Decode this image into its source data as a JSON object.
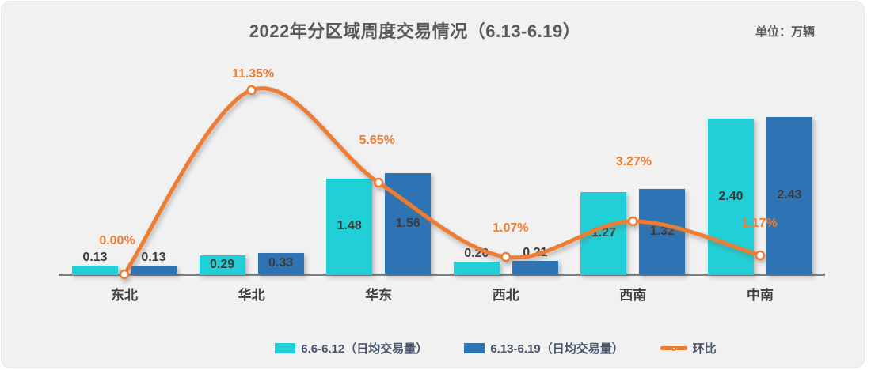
{
  "panel": {
    "title": "2022年分区域周度交易情况（6.13-6.19）",
    "unit_label": "单位：万辆"
  },
  "legend": {
    "position": "bottom",
    "items": [
      {
        "label": "6.6-6.12（日均交易量）",
        "marker": "bar-swatch",
        "color": "#21CFD6"
      },
      {
        "label": "6.13-6.19（日均交易量）",
        "marker": "bar-swatch",
        "color": "#2E74B5"
      },
      {
        "label": "环比",
        "marker": "line-dot",
        "color": "#ED7D31"
      }
    ]
  },
  "colors": {
    "bar_week1": "#21CFD6",
    "bar_week2": "#2E74B5",
    "ratio_line": "#ED7D31",
    "axis_line": "#7F7F7F",
    "value_label": "#3B3B3B",
    "category_label": "#3F3F3F",
    "pct_label": "#ED7D31",
    "title_text": "#595959",
    "legend_text": "#44546A",
    "panel_bg": "#F1F1F2"
  },
  "chart_data": {
    "type": "bar",
    "combo": "bar+line",
    "title": "2022年分区域周度交易情况（6.13-6.19）",
    "unit": "单位：万辆",
    "categories": [
      "东北",
      "华北",
      "华东",
      "西北",
      "西南",
      "中南"
    ],
    "series": [
      {
        "name": "6.6-6.12（日均交易量）",
        "type": "bar",
        "axis": "primary",
        "color": "#21CFD6",
        "values": [
          0.13,
          0.29,
          1.48,
          0.2,
          1.27,
          2.4
        ]
      },
      {
        "name": "6.13-6.19（日均交易量）",
        "type": "bar",
        "axis": "primary",
        "color": "#2E74B5",
        "values": [
          0.13,
          0.33,
          1.56,
          0.21,
          1.32,
          2.43
        ]
      },
      {
        "name": "环比",
        "type": "line",
        "axis": "secondary",
        "color": "#ED7D31",
        "smooth": true,
        "marker": "circle-white-fill",
        "values": [
          0.0,
          11.35,
          5.65,
          1.07,
          3.27,
          1.17
        ],
        "labels": [
          "0.00%",
          "11.35%",
          "5.65%",
          "1.07%",
          "3.27%",
          "1.17%"
        ]
      }
    ],
    "xlabel": "",
    "ylabel": "",
    "ylim": [
      0,
      3.5
    ],
    "y2lim": [
      0,
      14
    ],
    "grid": false,
    "axes_visible": {
      "x_baseline": true,
      "y_ticks": false,
      "y2_ticks": false
    },
    "value_label_format": "0.00",
    "legend_position": "bottom"
  }
}
